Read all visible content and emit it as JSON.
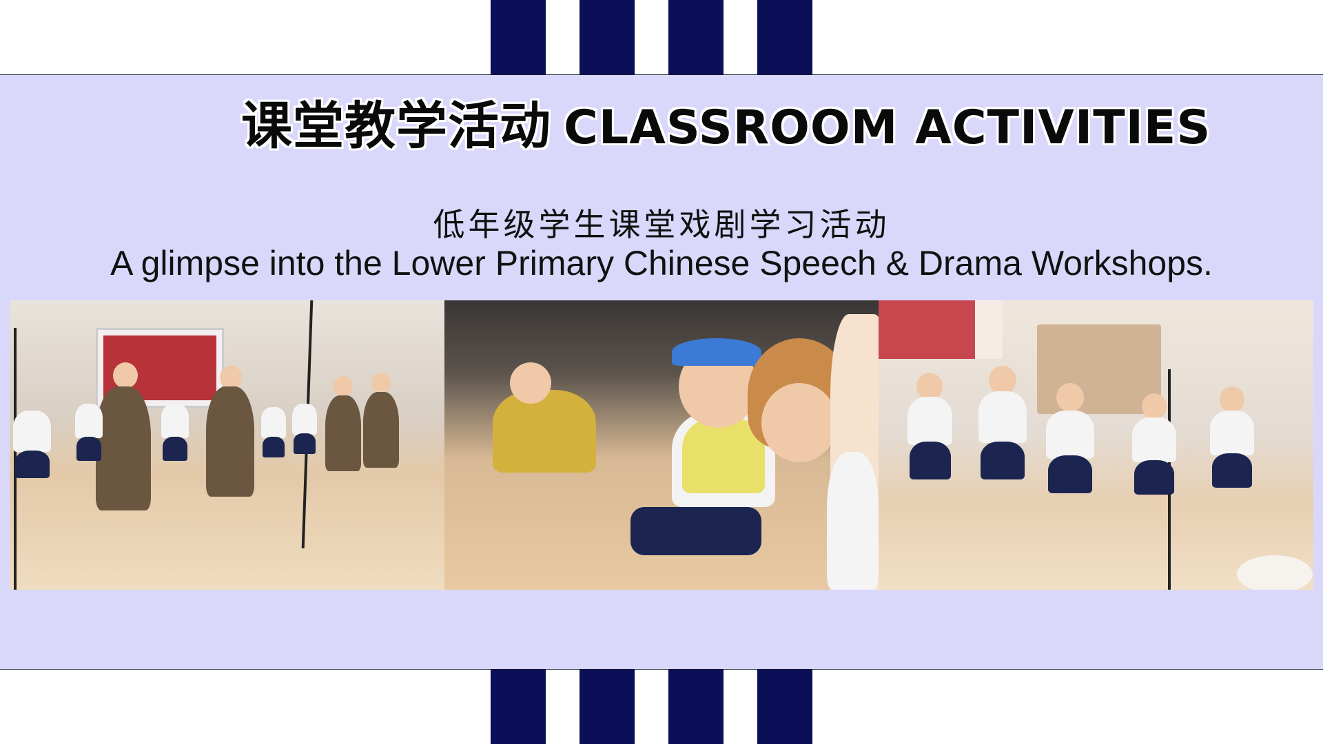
{
  "title": {
    "zh": "课堂教学活动",
    "en": "CLASSROOM ACTIVITIES"
  },
  "subtitle": {
    "zh": "低年级学生课堂戏剧学习活动",
    "en": "A glimpse into the Lower Primary Chinese Speech & Drama Workshops."
  },
  "photos": [
    {
      "label": "drama-performance-photo"
    },
    {
      "label": "seated-students-photo"
    },
    {
      "label": "mouse-costume-performance-photo"
    }
  ],
  "colors": {
    "band": "#d9d8fb",
    "stripe": "#0b0f57",
    "title": "#0a0a0a"
  }
}
